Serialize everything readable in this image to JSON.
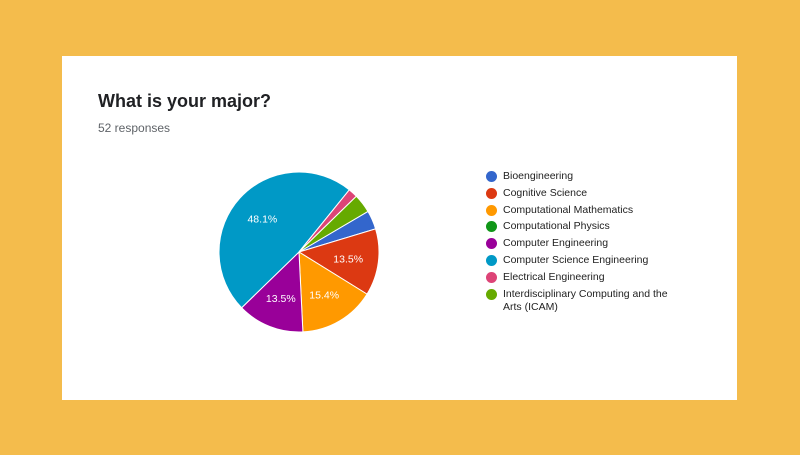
{
  "form": {
    "question": "What is your major?",
    "responses_text": "52 responses"
  },
  "chart_data": {
    "type": "pie",
    "legend_position": "right",
    "categories": [
      "Bioengineering",
      "Cognitive Science",
      "Computational Mathematics",
      "Computational Physics",
      "Computer Engineering",
      "Computer Science Engineering",
      "Electrical Engineering",
      "Interdisciplinary Computing and the Arts (ICAM)"
    ],
    "values": [
      3.8,
      13.5,
      15.4,
      0,
      13.5,
      48.1,
      1.9,
      3.8
    ],
    "data_labels": [
      "",
      "13.5%",
      "15.4%",
      "",
      "13.5%",
      "48.1%",
      "",
      ""
    ],
    "colors": [
      "#3366CC",
      "#DC3912",
      "#FF9900",
      "#109618",
      "#990099",
      "#0099C6",
      "#DD4477",
      "#66AA00"
    ]
  }
}
